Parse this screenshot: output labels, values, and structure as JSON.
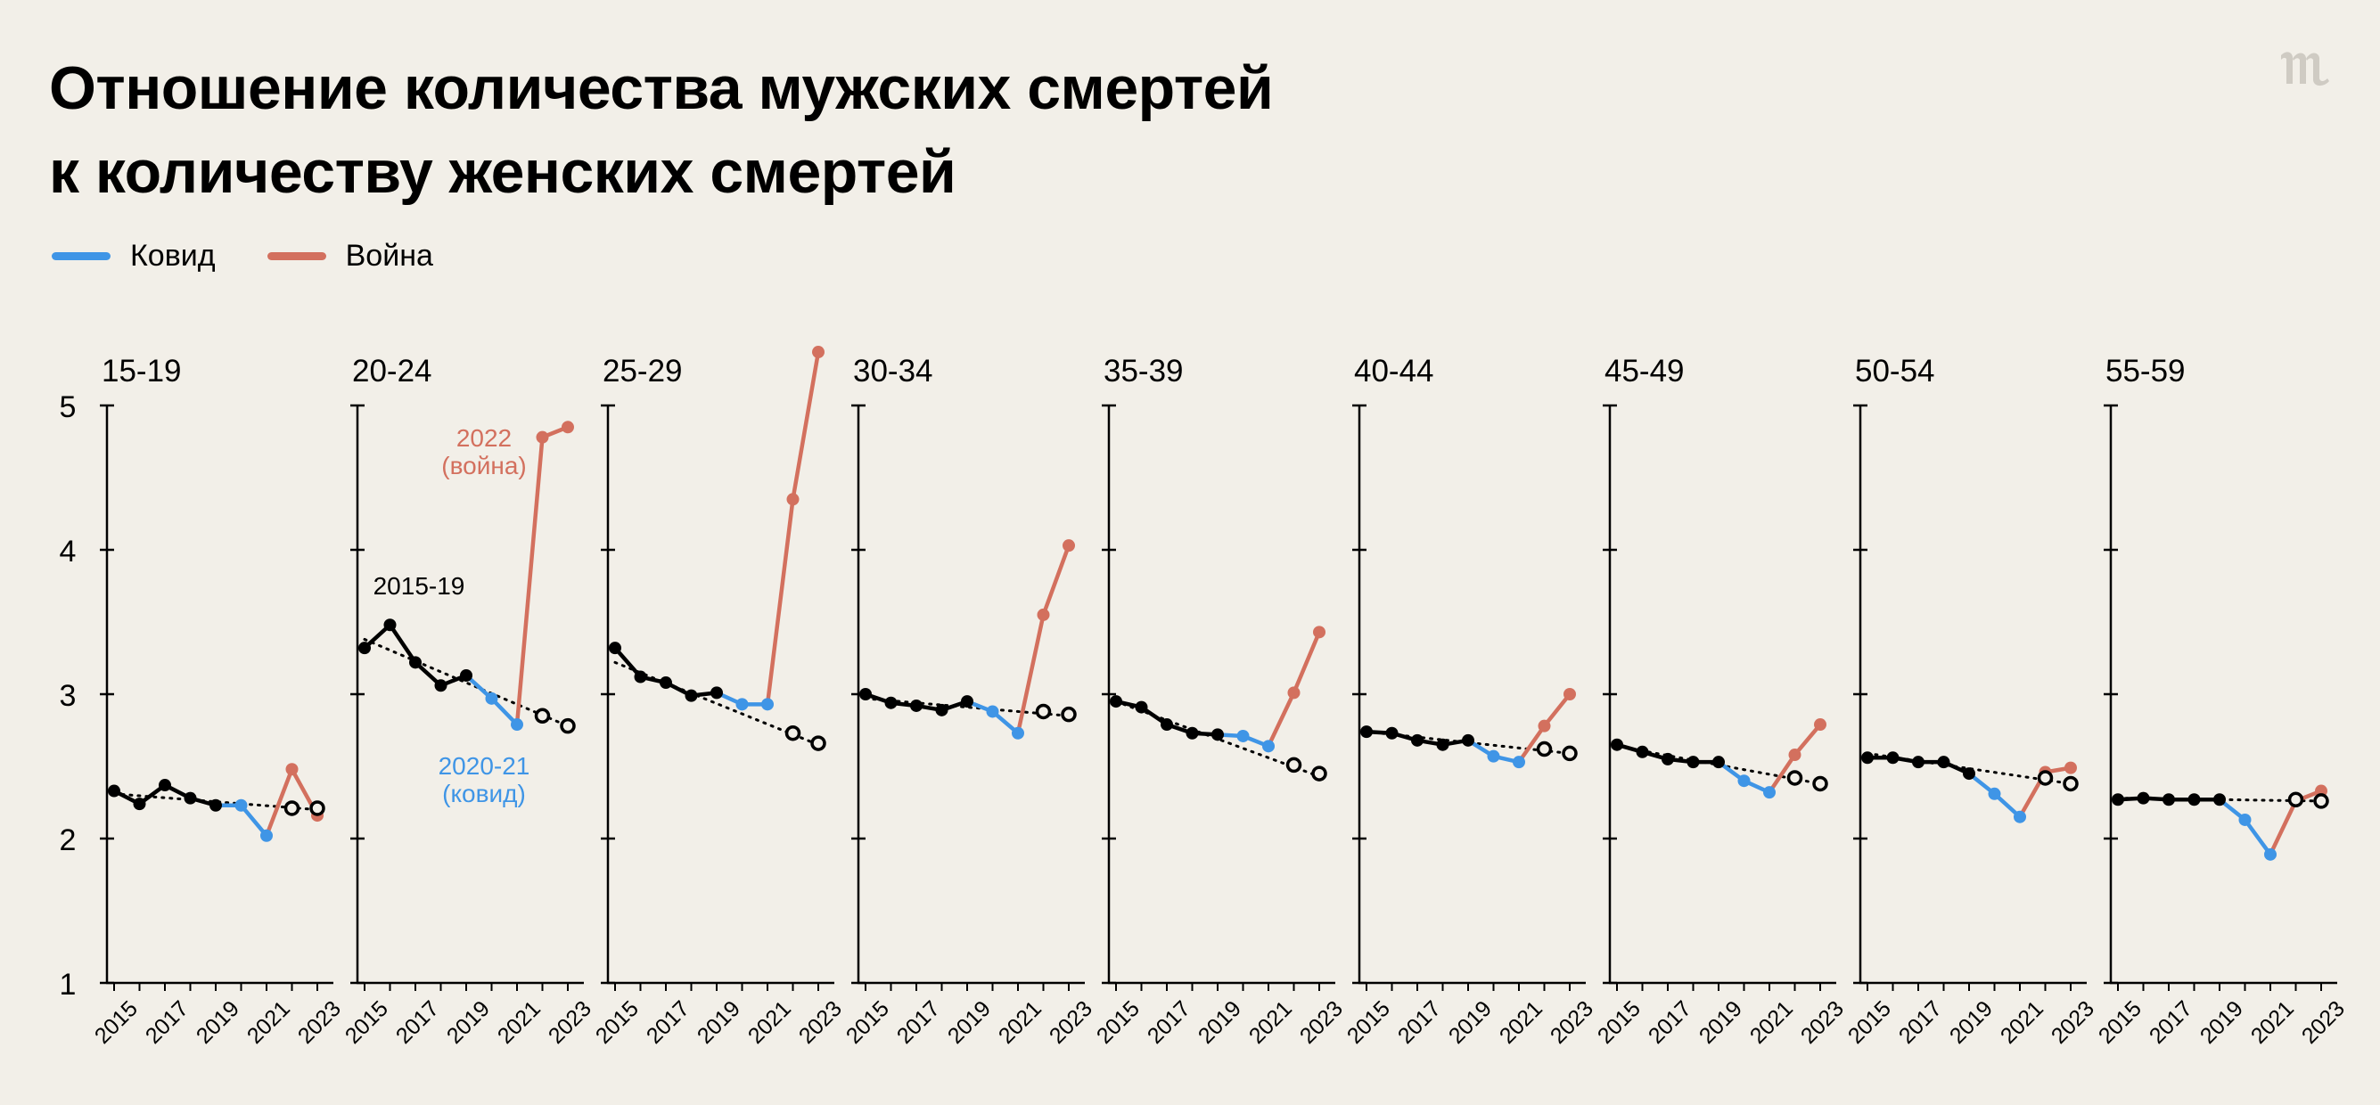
{
  "title_lines": [
    "Отношение количества мужских смертей",
    "к количеству женских смертей"
  ],
  "logo": {
    "icon": "meduza-logo-icon",
    "color": "#cfcbc3"
  },
  "legend": [
    {
      "label": "Ковид",
      "color": "#3f95e6"
    },
    {
      "label": "Война",
      "color": "#d3705e"
    }
  ],
  "colors": {
    "baseline": "#000000",
    "covid": "#3f95e6",
    "war": "#d3705e",
    "background": "#f2efe8"
  },
  "annotations": {
    "baseline": "2015-19",
    "war": [
      "2022",
      "(война)"
    ],
    "covid": [
      "2020-21",
      "(ковид)"
    ]
  },
  "chart_data": {
    "type": "line",
    "small_multiples": true,
    "ylim": [
      1,
      5
    ],
    "y_ticks": [
      1,
      2,
      3,
      4,
      5
    ],
    "x_ticks": [
      2015,
      2017,
      2019,
      2021,
      2023
    ],
    "xlim": [
      2015,
      2023
    ],
    "grid": false,
    "legend_position": "top-left",
    "panels": [
      {
        "label": "15-19",
        "observed": [
          [
            2015,
            2.33
          ],
          [
            2016,
            2.24
          ],
          [
            2017,
            2.37
          ],
          [
            2018,
            2.28
          ],
          [
            2019,
            2.23
          ],
          [
            2020,
            2.23
          ],
          [
            2021,
            2.02
          ],
          [
            2022,
            2.48
          ],
          [
            2023,
            2.16
          ]
        ],
        "expected": [
          [
            2022,
            2.21
          ],
          [
            2023,
            2.21
          ]
        ],
        "trend": [
          [
            2015,
            2.31
          ],
          [
            2023,
            2.2
          ]
        ]
      },
      {
        "label": "20-24",
        "observed": [
          [
            2015,
            3.32
          ],
          [
            2016,
            3.48
          ],
          [
            2017,
            3.22
          ],
          [
            2018,
            3.06
          ],
          [
            2019,
            3.13
          ],
          [
            2020,
            2.97
          ],
          [
            2021,
            2.79
          ],
          [
            2022,
            4.78
          ],
          [
            2023,
            4.85
          ]
        ],
        "expected": [
          [
            2022,
            2.85
          ],
          [
            2023,
            2.78
          ]
        ],
        "trend": [
          [
            2015,
            3.38
          ],
          [
            2023,
            2.78
          ]
        ]
      },
      {
        "label": "25-29",
        "observed": [
          [
            2015,
            3.32
          ],
          [
            2016,
            3.12
          ],
          [
            2017,
            3.08
          ],
          [
            2018,
            2.99
          ],
          [
            2019,
            3.01
          ],
          [
            2020,
            2.93
          ],
          [
            2021,
            2.93
          ],
          [
            2022,
            4.35
          ],
          [
            2023,
            5.37
          ]
        ],
        "expected": [
          [
            2022,
            2.73
          ],
          [
            2023,
            2.66
          ]
        ],
        "trend": [
          [
            2015,
            3.22
          ],
          [
            2023,
            2.65
          ]
        ]
      },
      {
        "label": "30-34",
        "observed": [
          [
            2015,
            3.0
          ],
          [
            2016,
            2.94
          ],
          [
            2017,
            2.92
          ],
          [
            2018,
            2.89
          ],
          [
            2019,
            2.95
          ],
          [
            2020,
            2.88
          ],
          [
            2021,
            2.73
          ],
          [
            2022,
            3.55
          ],
          [
            2023,
            4.03
          ]
        ],
        "expected": [
          [
            2022,
            2.88
          ],
          [
            2023,
            2.86
          ]
        ],
        "trend": [
          [
            2015,
            2.97
          ],
          [
            2023,
            2.85
          ]
        ]
      },
      {
        "label": "35-39",
        "observed": [
          [
            2015,
            2.95
          ],
          [
            2016,
            2.91
          ],
          [
            2017,
            2.79
          ],
          [
            2018,
            2.73
          ],
          [
            2019,
            2.72
          ],
          [
            2020,
            2.71
          ],
          [
            2021,
            2.64
          ],
          [
            2022,
            3.01
          ],
          [
            2023,
            3.43
          ]
        ],
        "expected": [
          [
            2022,
            2.51
          ],
          [
            2023,
            2.45
          ]
        ],
        "trend": [
          [
            2015,
            2.95
          ],
          [
            2023,
            2.43
          ]
        ]
      },
      {
        "label": "40-44",
        "observed": [
          [
            2015,
            2.74
          ],
          [
            2016,
            2.73
          ],
          [
            2017,
            2.68
          ],
          [
            2018,
            2.65
          ],
          [
            2019,
            2.68
          ],
          [
            2020,
            2.57
          ],
          [
            2021,
            2.53
          ],
          [
            2022,
            2.78
          ],
          [
            2023,
            3.0
          ]
        ],
        "expected": [
          [
            2022,
            2.62
          ],
          [
            2023,
            2.59
          ]
        ],
        "trend": [
          [
            2015,
            2.74
          ],
          [
            2023,
            2.59
          ]
        ]
      },
      {
        "label": "45-49",
        "observed": [
          [
            2015,
            2.65
          ],
          [
            2016,
            2.6
          ],
          [
            2017,
            2.55
          ],
          [
            2018,
            2.53
          ],
          [
            2019,
            2.53
          ],
          [
            2020,
            2.4
          ],
          [
            2021,
            2.32
          ],
          [
            2022,
            2.58
          ],
          [
            2023,
            2.79
          ]
        ],
        "expected": [
          [
            2022,
            2.42
          ],
          [
            2023,
            2.38
          ]
        ],
        "trend": [
          [
            2015,
            2.64
          ],
          [
            2023,
            2.38
          ]
        ]
      },
      {
        "label": "50-54",
        "observed": [
          [
            2015,
            2.56
          ],
          [
            2016,
            2.56
          ],
          [
            2017,
            2.53
          ],
          [
            2018,
            2.53
          ],
          [
            2019,
            2.45
          ],
          [
            2020,
            2.31
          ],
          [
            2021,
            2.15
          ],
          [
            2022,
            2.46
          ],
          [
            2023,
            2.49
          ]
        ],
        "expected": [
          [
            2022,
            2.42
          ],
          [
            2023,
            2.38
          ]
        ],
        "trend": [
          [
            2015,
            2.59
          ],
          [
            2023,
            2.38
          ]
        ]
      },
      {
        "label": "55-59",
        "observed": [
          [
            2015,
            2.27
          ],
          [
            2016,
            2.28
          ],
          [
            2017,
            2.27
          ],
          [
            2018,
            2.27
          ],
          [
            2019,
            2.27
          ],
          [
            2020,
            2.13
          ],
          [
            2021,
            1.89
          ],
          [
            2022,
            2.26
          ],
          [
            2023,
            2.33
          ]
        ],
        "expected": [
          [
            2022,
            2.27
          ],
          [
            2023,
            2.26
          ]
        ],
        "trend": [
          [
            2015,
            2.28
          ],
          [
            2023,
            2.26
          ]
        ]
      }
    ]
  }
}
